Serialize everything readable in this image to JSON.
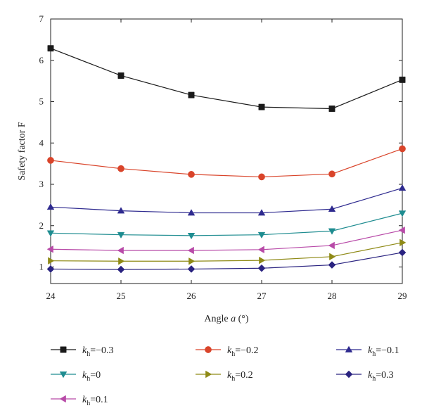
{
  "chart_data": {
    "type": "line",
    "title": "",
    "xlabel_prefix": "Angle ",
    "xlabel_var": "a",
    "xlabel_suffix": " (°)",
    "ylabel": "Safety factor F",
    "xlim": [
      24,
      29
    ],
    "ylim": [
      0.6,
      7
    ],
    "x": [
      24,
      25,
      26,
      27,
      28,
      29
    ],
    "x_tick_labels": [
      "24",
      "25",
      "26",
      "27",
      "28",
      "29"
    ],
    "y_ticks": [
      1,
      2,
      3,
      4,
      5,
      6,
      7
    ],
    "y_tick_labels": [
      "1",
      "2",
      "3",
      "4",
      "5",
      "6",
      "7"
    ],
    "grid": false,
    "legend_position": "bottom",
    "series": [
      {
        "name_main": "k",
        "name_sub": "h",
        "name_rest": "=−0.3",
        "color": "#1a1a1a",
        "marker": "square",
        "values": [
          6.29,
          5.63,
          5.16,
          4.87,
          4.83,
          5.53
        ]
      },
      {
        "name_main": "k",
        "name_sub": "h",
        "name_rest": "=−0.2",
        "color": "#d9442a",
        "marker": "circle",
        "values": [
          3.58,
          3.38,
          3.24,
          3.18,
          3.25,
          3.86
        ]
      },
      {
        "name_main": "k",
        "name_sub": "h",
        "name_rest": "=−0.1",
        "color": "#2e2a8f",
        "marker": "triangle-up",
        "values": [
          2.45,
          2.36,
          2.31,
          2.31,
          2.4,
          2.91
        ]
      },
      {
        "name_main": "k",
        "name_sub": "h",
        "name_rest": "=0",
        "color": "#1e8c90",
        "marker": "triangle-down",
        "values": [
          1.82,
          1.78,
          1.76,
          1.78,
          1.87,
          2.3
        ]
      },
      {
        "name_main": "k",
        "name_sub": "h",
        "name_rest": "=0.2",
        "color": "#8f8a16",
        "marker": "triangle-right",
        "values": [
          1.15,
          1.14,
          1.14,
          1.16,
          1.25,
          1.59
        ]
      },
      {
        "name_main": "k",
        "name_sub": "h",
        "name_rest": "=0.3",
        "color": "#2a2380",
        "marker": "diamond",
        "values": [
          0.95,
          0.94,
          0.95,
          0.97,
          1.05,
          1.35
        ]
      },
      {
        "name_main": "k",
        "name_sub": "h",
        "name_rest": "=0.1",
        "color": "#b84aa8",
        "marker": "triangle-left",
        "values": [
          1.43,
          1.4,
          1.4,
          1.42,
          1.52,
          1.89
        ]
      }
    ]
  }
}
